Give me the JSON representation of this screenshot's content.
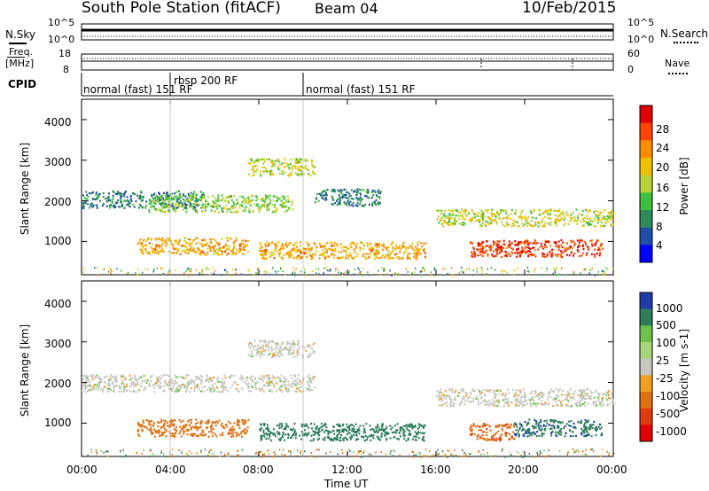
{
  "header": {
    "title": "South Pole Station (fitACF)",
    "beam": "Beam 04",
    "date": "10/Feb/2015"
  },
  "top_panels": {
    "nsky_label": "N.Sky",
    "nsky_ticks": [
      "10^5",
      "10^0"
    ],
    "nsearch_label": "N.Search",
    "nsearch_ticks": [
      "10^5",
      "10^0"
    ],
    "freq_label_1": "Freq.",
    "freq_label_2": "[MHz]",
    "freq_ticks": [
      "18",
      "8"
    ],
    "nave_label": "Nave",
    "nave_ticks": [
      "60",
      "0"
    ],
    "cpid_label": "CPID",
    "cpid_segments": [
      {
        "label": "normal (fast) 151 RF",
        "start_hour": 0,
        "end_hour": 4
      },
      {
        "label": "rbsp 200 RF",
        "start_hour": 4,
        "end_hour": 10
      },
      {
        "label": "normal (fast) 151 RF",
        "start_hour": 10,
        "end_hour": 24
      }
    ]
  },
  "x_axis": {
    "label": "Time UT",
    "ticks": [
      "00:00",
      "04:00",
      "08:00",
      "12:00",
      "16:00",
      "20:00",
      "00:00"
    ]
  },
  "colors": {
    "power_scale": [
      "#0000ff",
      "#1e50a8",
      "#2f8a5a",
      "#3fbf3f",
      "#b9d23a",
      "#f0c000",
      "#ff8c00",
      "#ff4400",
      "#e00000"
    ],
    "velocity_scale": [
      "#1f3ca8",
      "#2e7d5a",
      "#6cc24a",
      "#a8d47a",
      "#c8c8c0",
      "#f0a020",
      "#e07010",
      "#e03a10",
      "#e00000"
    ]
  },
  "chart_data": [
    {
      "type": "heatmap",
      "title": "",
      "xlabel": "Time UT",
      "ylabel": "Slant Range [km]",
      "xlim_hours": [
        0,
        24
      ],
      "ylim": [
        180,
        4500
      ],
      "yticks": [
        "1000",
        "2000",
        "3000",
        "4000"
      ],
      "colorbar": {
        "label": "Power [dB]",
        "ticks": [
          "28",
          "24",
          "20",
          "16",
          "12",
          "8",
          "4"
        ]
      },
      "scatter_bands": [
        {
          "start_hour": 0.0,
          "end_hour": 5.5,
          "range_km": 2050,
          "value": 8
        },
        {
          "start_hour": 3.0,
          "end_hour": 9.5,
          "range_km": 1950,
          "value": 14
        },
        {
          "start_hour": 7.5,
          "end_hour": 10.5,
          "range_km": 2850,
          "value": 16
        },
        {
          "start_hour": 10.5,
          "end_hour": 13.5,
          "range_km": 2100,
          "value": 8
        },
        {
          "start_hour": 2.5,
          "end_hour": 7.5,
          "range_km": 900,
          "value": 20
        },
        {
          "start_hour": 8.0,
          "end_hour": 15.5,
          "range_km": 800,
          "value": 20
        },
        {
          "start_hour": 16.0,
          "end_hour": 24.0,
          "range_km": 1600,
          "value": 16
        },
        {
          "start_hour": 17.5,
          "end_hour": 23.5,
          "range_km": 850,
          "value": 26
        }
      ]
    },
    {
      "type": "heatmap",
      "title": "",
      "xlabel": "Time UT",
      "ylabel": "Slant Range [km]",
      "xlim_hours": [
        0,
        24
      ],
      "ylim": [
        180,
        4500
      ],
      "yticks": [
        "1000",
        "2000",
        "3000",
        "4000"
      ],
      "colorbar": {
        "label": "Velocity [m s-1]",
        "ticks": [
          "1000",
          "500",
          "100",
          "25",
          "-25",
          "-100",
          "-500",
          "-1000"
        ]
      },
      "scatter_bands": [
        {
          "start_hour": 0.0,
          "end_hour": 10.5,
          "range_km": 2000,
          "value": 0
        },
        {
          "start_hour": 7.5,
          "end_hour": 10.5,
          "range_km": 2850,
          "value": 0
        },
        {
          "start_hour": 2.5,
          "end_hour": 7.5,
          "range_km": 900,
          "value": -300
        },
        {
          "start_hour": 8.0,
          "end_hour": 15.5,
          "range_km": 800,
          "value": 300
        },
        {
          "start_hour": 16.0,
          "end_hour": 24.0,
          "range_km": 1650,
          "value": 0
        },
        {
          "start_hour": 17.5,
          "end_hour": 19.5,
          "range_km": 800,
          "value": -400
        },
        {
          "start_hour": 19.5,
          "end_hour": 23.5,
          "range_km": 900,
          "value": 400
        }
      ]
    }
  ]
}
